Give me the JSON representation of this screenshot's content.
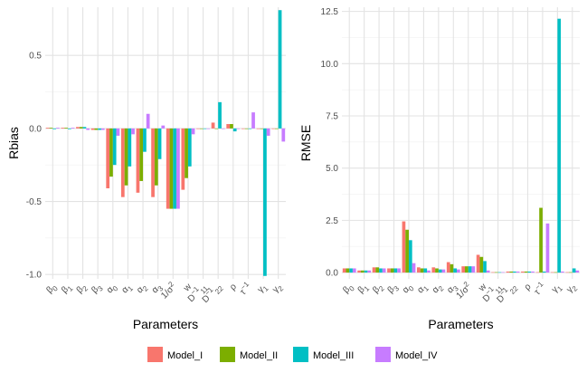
{
  "chart_data": [
    {
      "type": "bar",
      "title": "",
      "xlabel": "Parameters",
      "ylabel": "Rbias",
      "ylim": [
        -1.03,
        0.83
      ],
      "yticks": [
        {
          "value": 0.5,
          "label": "0.5"
        },
        {
          "value": 0.0,
          "label": "0.0"
        },
        {
          "value": -0.5,
          "label": "-0.5"
        },
        {
          "value": -1.0,
          "label": "-1.0"
        }
      ],
      "grid": true,
      "categories": [
        "β0",
        "β1",
        "β2",
        "β3",
        "α0",
        "α1",
        "α2",
        "α3",
        "1/σ²",
        "w",
        "D11⁻¹",
        "D22⁻¹",
        "ρ",
        "τ⁻¹",
        "γ1",
        "γ2"
      ],
      "series": [
        {
          "name": "Model_I",
          "values": [
            0.005,
            0.005,
            0.01,
            -0.01,
            -0.41,
            -0.47,
            -0.44,
            -0.47,
            -0.55,
            -0.42,
            0.0,
            0.04,
            0.03,
            0.0,
            0.0,
            0.0
          ]
        },
        {
          "name": "Model_II",
          "values": [
            0.005,
            0.005,
            0.01,
            -0.01,
            -0.33,
            -0.39,
            -0.36,
            -0.39,
            -0.55,
            -0.34,
            0.0,
            0.0,
            0.03,
            0.0,
            0.0,
            0.0
          ]
        },
        {
          "name": "Model_III",
          "values": [
            -0.005,
            -0.005,
            0.01,
            -0.01,
            -0.25,
            -0.26,
            -0.16,
            -0.21,
            -0.55,
            -0.26,
            0.0,
            0.18,
            -0.02,
            0.0,
            -1.01,
            0.81
          ]
        },
        {
          "name": "Model_IV",
          "values": [
            0.005,
            0.005,
            -0.01,
            -0.01,
            -0.05,
            -0.04,
            0.1,
            0.02,
            -0.55,
            -0.04,
            0.0,
            0.0,
            0.0,
            0.11,
            -0.05,
            -0.09
          ]
        }
      ]
    },
    {
      "type": "bar",
      "title": "",
      "xlabel": "Parameters",
      "ylabel": "RMSE",
      "ylim": [
        -0.3,
        12.7
      ],
      "yticks": [
        {
          "value": 0.0,
          "label": "0.0"
        },
        {
          "value": 2.5,
          "label": "2.5"
        },
        {
          "value": 5.0,
          "label": "5.0"
        },
        {
          "value": 7.5,
          "label": "7.5"
        },
        {
          "value": 10.0,
          "label": "10.0"
        },
        {
          "value": 12.5,
          "label": "12.5"
        }
      ],
      "grid": true,
      "categories": [
        "β0",
        "β1",
        "β2",
        "β3",
        "α0",
        "α1",
        "α2",
        "α3",
        "1/σ²",
        "w",
        "D11⁻¹",
        "D22⁻¹",
        "ρ",
        "τ⁻¹",
        "γ1",
        "γ2"
      ],
      "series": [
        {
          "name": "Model_I",
          "values": [
            0.2,
            0.1,
            0.25,
            0.2,
            2.45,
            0.25,
            0.25,
            0.5,
            0.3,
            0.85,
            0.02,
            0.05,
            0.05,
            0.02,
            0.02,
            0.02
          ]
        },
        {
          "name": "Model_II",
          "values": [
            0.2,
            0.1,
            0.25,
            0.2,
            2.05,
            0.2,
            0.2,
            0.4,
            0.3,
            0.75,
            0.02,
            0.05,
            0.05,
            3.1,
            0.02,
            0.02
          ]
        },
        {
          "name": "Model_III",
          "values": [
            0.2,
            0.1,
            0.2,
            0.2,
            1.55,
            0.2,
            0.15,
            0.2,
            0.3,
            0.55,
            0.02,
            0.05,
            0.05,
            0.05,
            12.15,
            0.2
          ]
        },
        {
          "name": "Model_IV",
          "values": [
            0.2,
            0.1,
            0.2,
            0.2,
            0.45,
            0.1,
            0.15,
            0.15,
            0.3,
            0.1,
            0.02,
            0.05,
            0.05,
            2.35,
            0.05,
            0.1
          ]
        }
      ]
    }
  ],
  "legend": {
    "items": [
      {
        "name": "Model_I",
        "color": "#F8766D"
      },
      {
        "name": "Model_II",
        "color": "#7CAE00"
      },
      {
        "name": "Model_III",
        "color": "#00BFC4"
      },
      {
        "name": "Model_IV",
        "color": "#C77CFF"
      }
    ]
  }
}
